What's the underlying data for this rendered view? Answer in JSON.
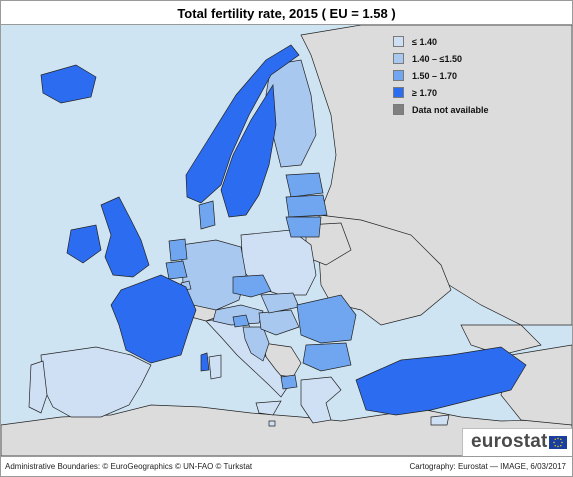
{
  "title": "Total fertility rate, 2015 ( EU = 1.58 )",
  "legend": {
    "items": [
      {
        "label": "≤ 1.40",
        "color": "#cfe0f5"
      },
      {
        "label": "1.40 – ≤1.50",
        "color": "#a9c8f0"
      },
      {
        "label": "1.50 – 1.70",
        "color": "#6fa6ef"
      },
      {
        "label": "≥ 1.70",
        "color": "#2c6cf0"
      },
      {
        "label": "Data not available",
        "color": "#808080"
      }
    ]
  },
  "colors": {
    "sea": "#cfe4f2",
    "non_eu_land": "#dcdcdc",
    "border": "#222222"
  },
  "footer": {
    "left": "Administrative Boundaries: © EuroGeographics © UN-FAO © Turkstat",
    "right": "Cartography: Eurostat — IMAGE, 6/03/2017"
  },
  "logo": {
    "text": "eurostat",
    "icon": "eu-flag-icon"
  }
}
